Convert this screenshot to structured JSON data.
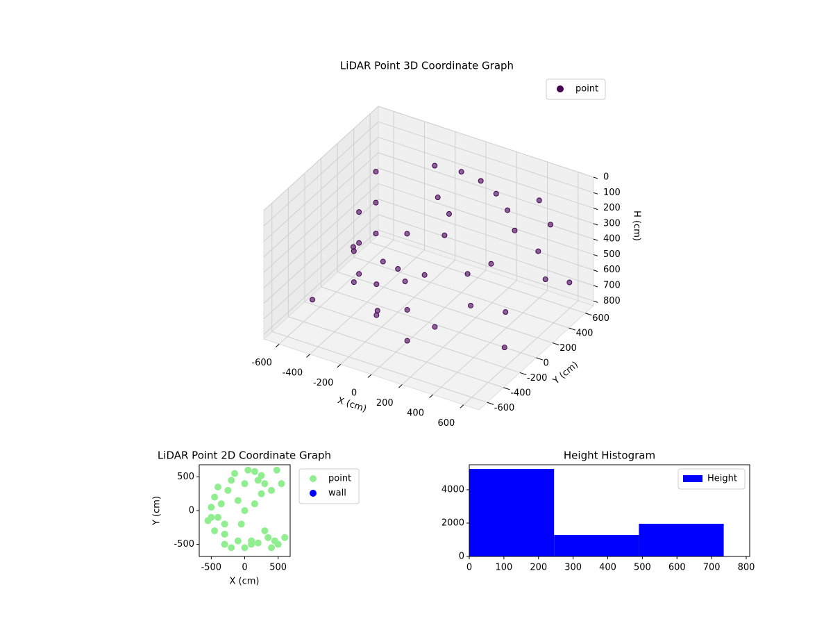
{
  "chart_data": [
    {
      "type": "scatter3d",
      "title": "LiDAR Point 3D Coordinate Graph",
      "x_label": "X (cm)",
      "y_label": "Y (cm)",
      "z_label": "H (cm)",
      "xlim": [
        -700,
        700
      ],
      "ylim": [
        -700,
        700
      ],
      "zlim": [
        830,
        0
      ],
      "xticks": [
        -600,
        -400,
        -200,
        0,
        200,
        400,
        600
      ],
      "yticks": [
        -600,
        -400,
        -200,
        0,
        200,
        400,
        600
      ],
      "zticks": [
        0,
        100,
        200,
        300,
        400,
        500,
        600,
        700,
        800
      ],
      "legend": "upper right",
      "series": [
        {
          "name": "point",
          "color": "#440154",
          "x": [
            -450,
            -450,
            -450,
            -400,
            -400,
            -400,
            -300,
            -300,
            -100,
            -100,
            100,
            100,
            0,
            100,
            200,
            300,
            400,
            -200,
            -100,
            0,
            50,
            -200,
            -100,
            0,
            200,
            300,
            500,
            500,
            600,
            600,
            -650,
            -650,
            200,
            -300,
            -350,
            -200,
            400,
            500,
            650,
            300
          ],
          "y": [
            200,
            200,
            200,
            -100,
            -100,
            -100,
            -350,
            -350,
            -450,
            -450,
            -450,
            -450,
            400,
            450,
            450,
            400,
            300,
            450,
            300,
            250,
            100,
            0,
            -100,
            -50,
            100,
            -50,
            0,
            400,
            300,
            -200,
            300,
            -200,
            -300,
            300,
            100,
            -250,
            600,
            550,
            500,
            200
          ],
          "h": [
            100,
            300,
            500,
            200,
            400,
            600,
            300,
            500,
            400,
            600,
            500,
            700,
            50,
            100,
            150,
            200,
            250,
            100,
            200,
            250,
            300,
            550,
            550,
            500,
            500,
            600,
            600,
            400,
            500,
            700,
            700,
            800,
            650,
            500,
            600,
            700,
            200,
            300,
            600,
            450
          ]
        }
      ]
    },
    {
      "type": "scatter",
      "title": "LiDAR Point 2D Coordinate Graph",
      "x_label": "X (cm)",
      "y_label": "Y (cm)",
      "xlim": [
        -680,
        680
      ],
      "ylim": [
        -680,
        680
      ],
      "xticks": [
        -500,
        0,
        500
      ],
      "yticks": [
        -500,
        0,
        500
      ],
      "legend": "outside right",
      "series": [
        {
          "name": "point",
          "color": "#90ee90",
          "x": [
            -450,
            -400,
            -300,
            -100,
            100,
            0,
            200,
            300,
            400,
            -200,
            -500,
            -350,
            -250,
            -150,
            50,
            150,
            250,
            350,
            450,
            500,
            -450,
            -300,
            -200,
            0,
            100,
            200,
            300,
            -400,
            -500,
            550,
            600,
            400,
            250,
            -100,
            -50,
            0,
            150,
            -300,
            -550,
            480
          ],
          "y": [
            200,
            -100,
            -350,
            -450,
            -450,
            400,
            450,
            400,
            300,
            450,
            -100,
            100,
            300,
            550,
            600,
            580,
            520,
            -400,
            -450,
            -500,
            -300,
            -500,
            -550,
            -550,
            -500,
            -480,
            -300,
            350,
            50,
            400,
            -400,
            -550,
            250,
            150,
            -200,
            0,
            100,
            -200,
            -150,
            600
          ]
        },
        {
          "name": "wall",
          "color": "#0000ff",
          "x": [],
          "y": []
        }
      ]
    },
    {
      "type": "histogram",
      "title": "Height Histogram",
      "xlim": [
        0,
        810
      ],
      "ylim": [
        0,
        5500
      ],
      "xticks": [
        0,
        100,
        200,
        300,
        400,
        500,
        600,
        700,
        800
      ],
      "yticks": [
        0,
        2000,
        4000
      ],
      "legend": "upper right",
      "series": [
        {
          "name": "Height",
          "color": "#0000ff",
          "bins": [
            0,
            245,
            490,
            735
          ],
          "values": [
            5250,
            1290,
            1960
          ]
        }
      ]
    }
  ]
}
